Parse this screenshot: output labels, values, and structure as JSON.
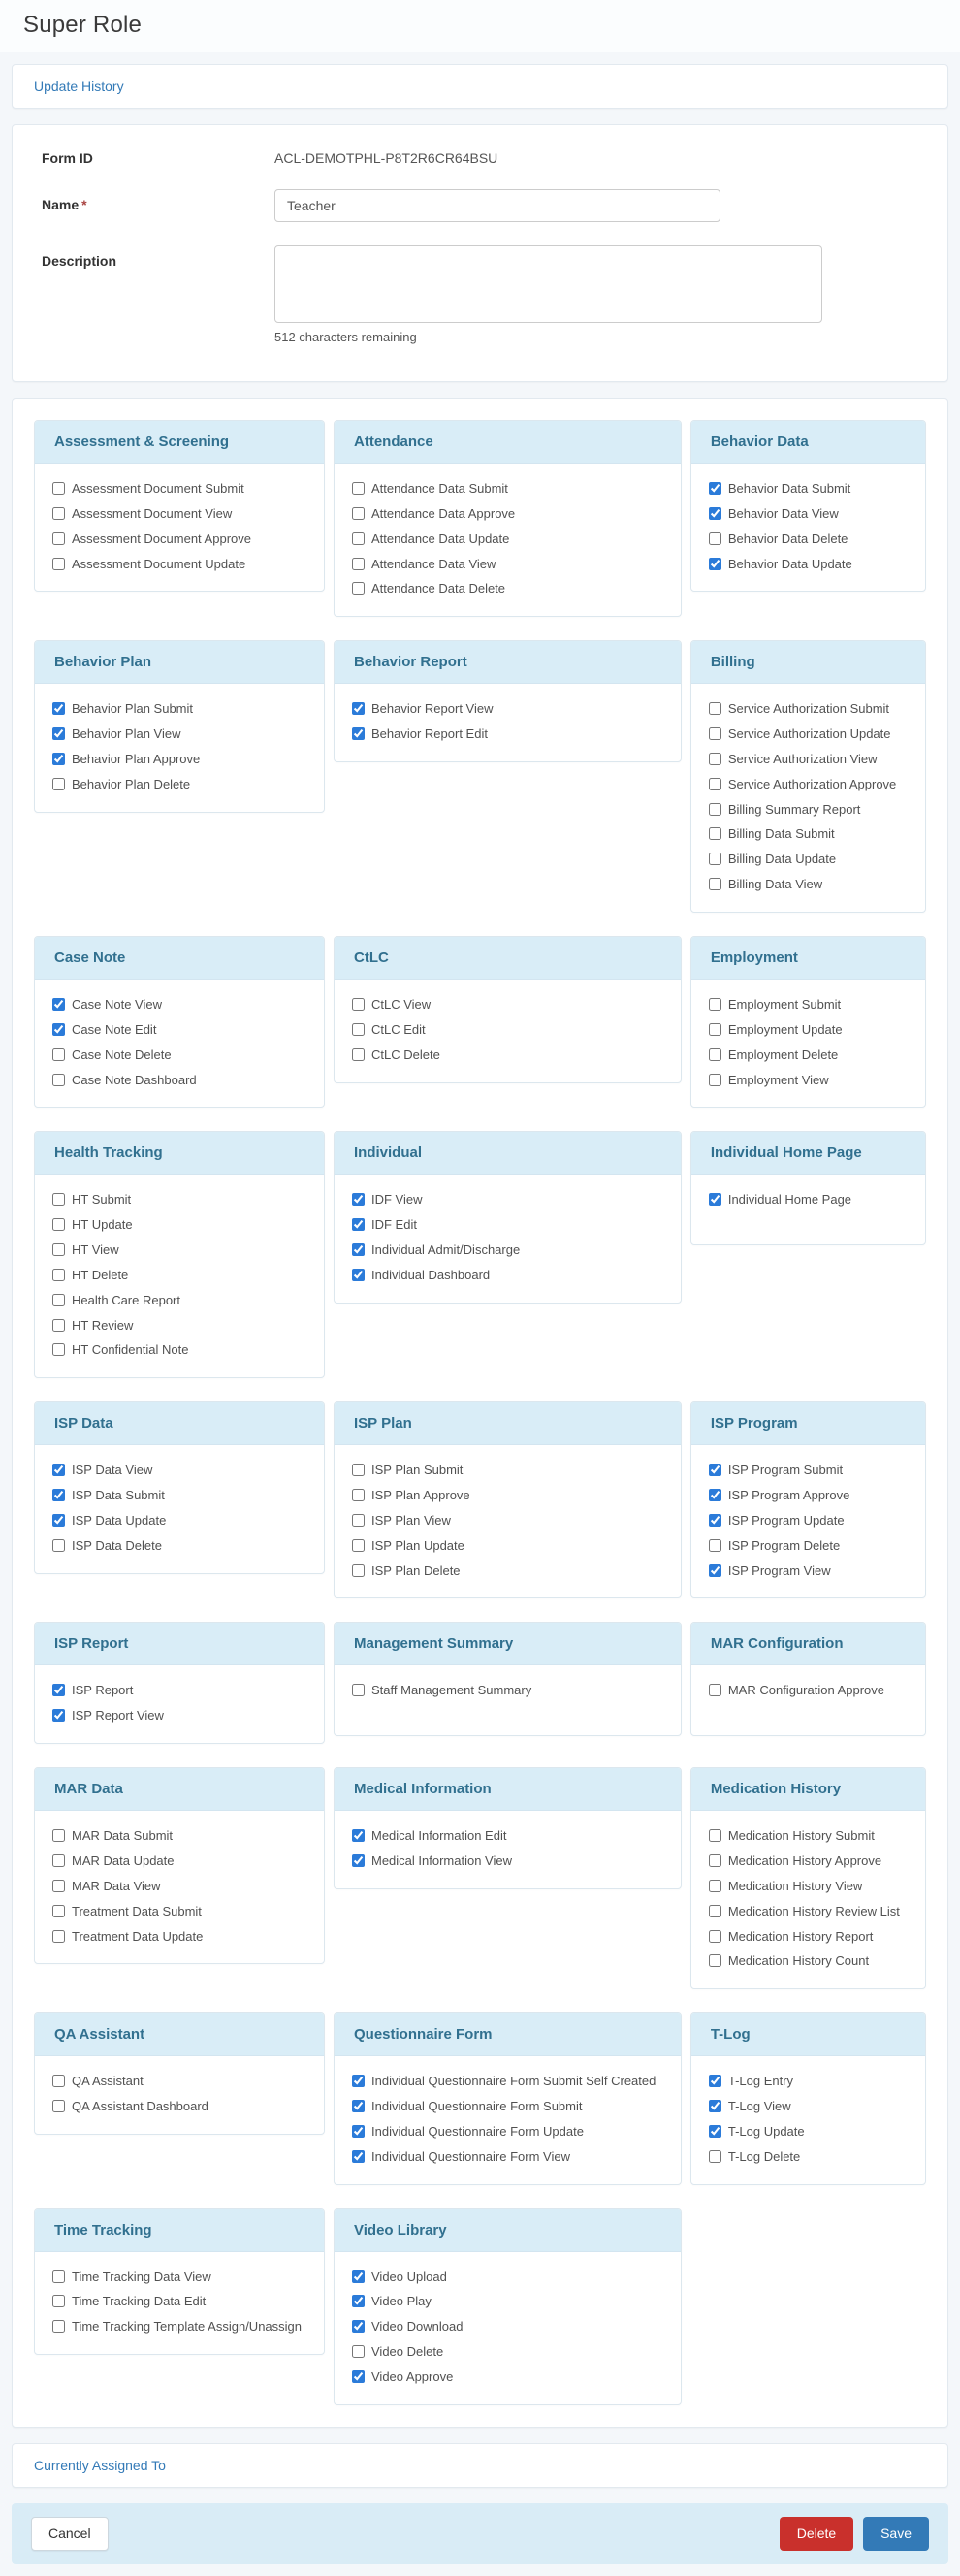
{
  "page": {
    "title": "Super Role"
  },
  "links": {
    "update_history": "Update History",
    "currently_assigned": "Currently Assigned To"
  },
  "form": {
    "form_id_label": "Form ID",
    "form_id_value": "ACL-DEMOTPHL-P8T2R6CR64BSU",
    "name_label": "Name",
    "required_marker": "*",
    "name_value": "Teacher",
    "description_label": "Description",
    "description_value": "",
    "chars_remaining": "512 characters remaining"
  },
  "permission_groups": [
    {
      "title": "Assessment & Screening",
      "items": [
        {
          "label": "Assessment Document Submit",
          "checked": false
        },
        {
          "label": "Assessment Document View",
          "checked": false
        },
        {
          "label": "Assessment Document Approve",
          "checked": false
        },
        {
          "label": "Assessment Document Update",
          "checked": false
        }
      ]
    },
    {
      "title": "Attendance",
      "items": [
        {
          "label": "Attendance Data Submit",
          "checked": false
        },
        {
          "label": "Attendance Data Approve",
          "checked": false
        },
        {
          "label": "Attendance Data Update",
          "checked": false
        },
        {
          "label": "Attendance Data View",
          "checked": false
        },
        {
          "label": "Attendance Data Delete",
          "checked": false
        }
      ]
    },
    {
      "title": "Behavior Data",
      "items": [
        {
          "label": "Behavior Data Submit",
          "checked": true
        },
        {
          "label": "Behavior Data View",
          "checked": true
        },
        {
          "label": "Behavior Data Delete",
          "checked": false
        },
        {
          "label": "Behavior Data Update",
          "checked": true
        }
      ]
    },
    {
      "title": "Behavior Plan",
      "items": [
        {
          "label": "Behavior Plan Submit",
          "checked": true
        },
        {
          "label": "Behavior Plan View",
          "checked": true
        },
        {
          "label": "Behavior Plan Approve",
          "checked": true
        },
        {
          "label": "Behavior Plan Delete",
          "checked": false
        }
      ]
    },
    {
      "title": "Behavior Report",
      "items": [
        {
          "label": "Behavior Report View",
          "checked": true
        },
        {
          "label": "Behavior Report Edit",
          "checked": true
        }
      ]
    },
    {
      "title": "Billing",
      "items": [
        {
          "label": "Service Authorization Submit",
          "checked": false
        },
        {
          "label": "Service Authorization Update",
          "checked": false
        },
        {
          "label": "Service Authorization View",
          "checked": false
        },
        {
          "label": "Service Authorization Approve",
          "checked": false
        },
        {
          "label": "Billing Summary Report",
          "checked": false
        },
        {
          "label": "Billing Data Submit",
          "checked": false
        },
        {
          "label": "Billing Data Update",
          "checked": false
        },
        {
          "label": "Billing Data View",
          "checked": false
        }
      ]
    },
    {
      "title": "Case Note",
      "items": [
        {
          "label": "Case Note View",
          "checked": true
        },
        {
          "label": "Case Note Edit",
          "checked": true
        },
        {
          "label": "Case Note Delete",
          "checked": false
        },
        {
          "label": "Case Note Dashboard",
          "checked": false
        }
      ]
    },
    {
      "title": "CtLC",
      "items": [
        {
          "label": "CtLC View",
          "checked": false
        },
        {
          "label": "CtLC Edit",
          "checked": false
        },
        {
          "label": "CtLC Delete",
          "checked": false
        }
      ]
    },
    {
      "title": "Employment",
      "items": [
        {
          "label": "Employment Submit",
          "checked": false
        },
        {
          "label": "Employment Update",
          "checked": false
        },
        {
          "label": "Employment Delete",
          "checked": false
        },
        {
          "label": "Employment View",
          "checked": false
        }
      ]
    },
    {
      "title": "Health Tracking",
      "items": [
        {
          "label": "HT Submit",
          "checked": false
        },
        {
          "label": "HT Update",
          "checked": false
        },
        {
          "label": "HT View",
          "checked": false
        },
        {
          "label": "HT Delete",
          "checked": false
        },
        {
          "label": "Health Care Report",
          "checked": false
        },
        {
          "label": "HT Review",
          "checked": false
        },
        {
          "label": "HT Confidential Note",
          "checked": false
        }
      ]
    },
    {
      "title": "Individual",
      "items": [
        {
          "label": "IDF View",
          "checked": true
        },
        {
          "label": "IDF Edit",
          "checked": true
        },
        {
          "label": "Individual Admit/Discharge",
          "checked": true
        },
        {
          "label": "Individual Dashboard",
          "checked": true
        }
      ]
    },
    {
      "title": "Individual Home Page",
      "items": [
        {
          "label": "Individual Home Page",
          "checked": true
        }
      ]
    },
    {
      "title": "ISP Data",
      "items": [
        {
          "label": "ISP Data View",
          "checked": true
        },
        {
          "label": "ISP Data Submit",
          "checked": true
        },
        {
          "label": "ISP Data Update",
          "checked": true
        },
        {
          "label": "ISP Data Delete",
          "checked": false
        }
      ]
    },
    {
      "title": "ISP Plan",
      "items": [
        {
          "label": "ISP Plan Submit",
          "checked": false
        },
        {
          "label": "ISP Plan Approve",
          "checked": false
        },
        {
          "label": "ISP Plan View",
          "checked": false
        },
        {
          "label": "ISP Plan Update",
          "checked": false
        },
        {
          "label": "ISP Plan Delete",
          "checked": false
        }
      ]
    },
    {
      "title": "ISP Program",
      "items": [
        {
          "label": "ISP Program Submit",
          "checked": true
        },
        {
          "label": "ISP Program Approve",
          "checked": true
        },
        {
          "label": "ISP Program Update",
          "checked": true
        },
        {
          "label": "ISP Program Delete",
          "checked": false
        },
        {
          "label": "ISP Program View",
          "checked": true
        }
      ]
    },
    {
      "title": "ISP Report",
      "items": [
        {
          "label": "ISP Report",
          "checked": true
        },
        {
          "label": "ISP Report View",
          "checked": true
        }
      ]
    },
    {
      "title": "Management Summary",
      "items": [
        {
          "label": "Staff Management Summary",
          "checked": false
        }
      ]
    },
    {
      "title": "MAR Configuration",
      "items": [
        {
          "label": "MAR Configuration Approve",
          "checked": false
        }
      ]
    },
    {
      "title": "MAR Data",
      "items": [
        {
          "label": "MAR Data Submit",
          "checked": false
        },
        {
          "label": "MAR Data Update",
          "checked": false
        },
        {
          "label": "MAR Data View",
          "checked": false
        },
        {
          "label": "Treatment Data Submit",
          "checked": false
        },
        {
          "label": "Treatment Data Update",
          "checked": false
        }
      ]
    },
    {
      "title": "Medical Information",
      "items": [
        {
          "label": "Medical Information Edit",
          "checked": true
        },
        {
          "label": "Medical Information View",
          "checked": true
        }
      ]
    },
    {
      "title": "Medication History",
      "items": [
        {
          "label": "Medication History Submit",
          "checked": false
        },
        {
          "label": "Medication History Approve",
          "checked": false
        },
        {
          "label": "Medication History View",
          "checked": false
        },
        {
          "label": "Medication History Review List",
          "checked": false
        },
        {
          "label": "Medication History Report",
          "checked": false
        },
        {
          "label": "Medication History Count",
          "checked": false
        }
      ]
    },
    {
      "title": "QA Assistant",
      "items": [
        {
          "label": "QA Assistant",
          "checked": false
        },
        {
          "label": "QA Assistant Dashboard",
          "checked": false
        }
      ]
    },
    {
      "title": "Questionnaire Form",
      "items": [
        {
          "label": "Individual Questionnaire Form Submit Self Created",
          "checked": true
        },
        {
          "label": "Individual Questionnaire Form Submit",
          "checked": true
        },
        {
          "label": "Individual Questionnaire Form Update",
          "checked": true
        },
        {
          "label": "Individual Questionnaire Form View",
          "checked": true
        }
      ]
    },
    {
      "title": "T-Log",
      "items": [
        {
          "label": "T-Log Entry",
          "checked": true
        },
        {
          "label": "T-Log View",
          "checked": true
        },
        {
          "label": "T-Log Update",
          "checked": true
        },
        {
          "label": "T-Log Delete",
          "checked": false
        }
      ]
    },
    {
      "title": "Time Tracking",
      "items": [
        {
          "label": "Time Tracking Data View",
          "checked": false
        },
        {
          "label": "Time Tracking Data Edit",
          "checked": false
        },
        {
          "label": "Time Tracking Template Assign/Unassign",
          "checked": false
        }
      ]
    },
    {
      "title": "Video Library",
      "items": [
        {
          "label": "Video Upload",
          "checked": true
        },
        {
          "label": "Video Play",
          "checked": true
        },
        {
          "label": "Video Download",
          "checked": true
        },
        {
          "label": "Video Delete",
          "checked": false
        },
        {
          "label": "Video Approve",
          "checked": true
        }
      ]
    }
  ],
  "footer": {
    "cancel": "Cancel",
    "delete": "Delete",
    "save": "Save"
  },
  "colors": {
    "accent": "#2b7bd9",
    "link": "#337ab7",
    "primary": "#337ab7",
    "danger": "#c9302c",
    "group_head_bg": "#d9edf7",
    "group_head_text": "#31708f",
    "footer_bg": "#d9ecf6",
    "page_bg": "#f4f7fa"
  }
}
